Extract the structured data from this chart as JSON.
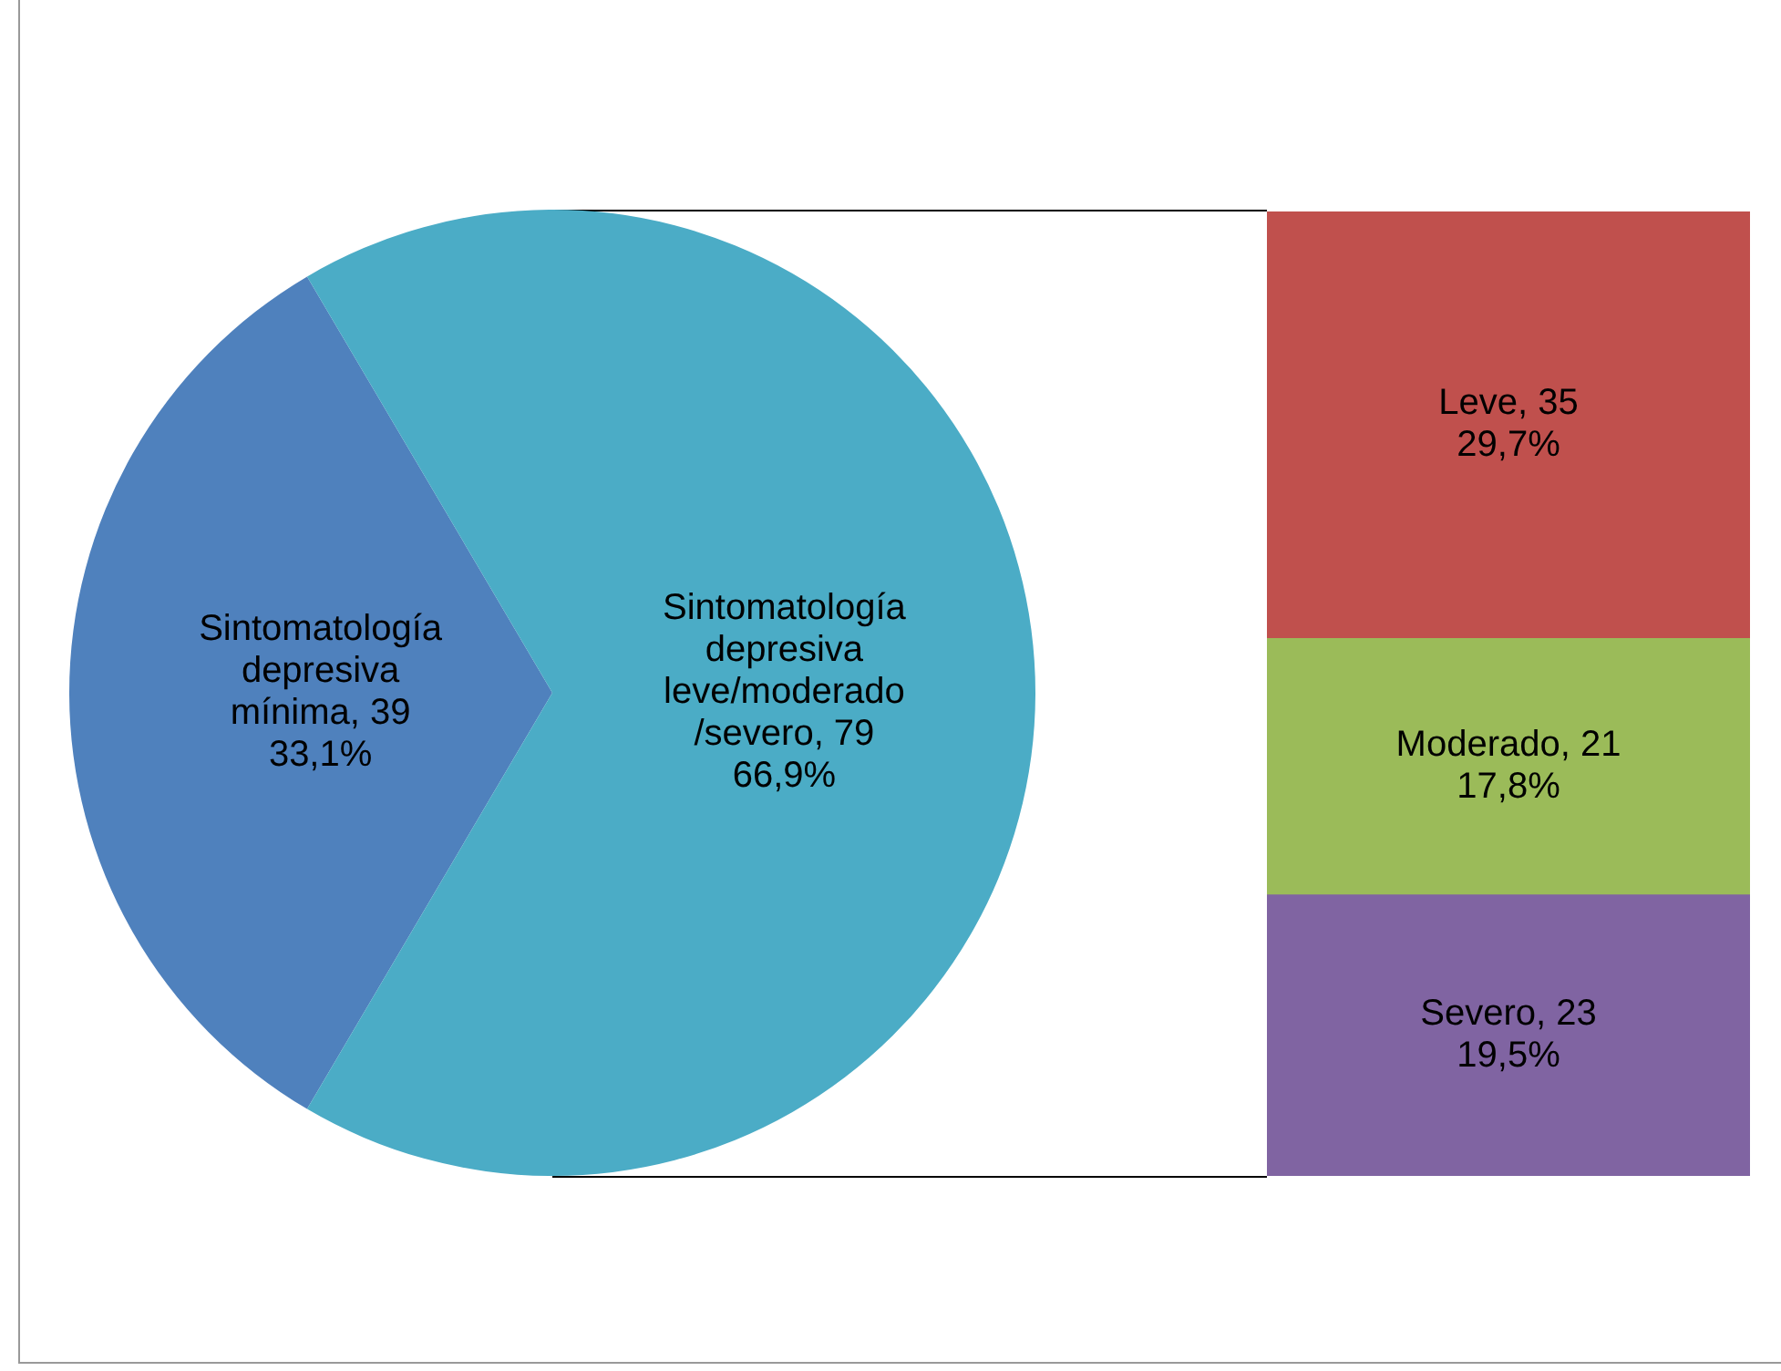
{
  "chart_data": [
    {
      "type": "pie",
      "categories": [
        "Sintomatología depresiva mínima, 39\n33,1%",
        "Sintomatología depresiva leve/moderado /severo, 79\n66,9%"
      ],
      "values": [
        39,
        79
      ],
      "colors": [
        "#4f81bd",
        "#4bacc6"
      ]
    },
    {
      "type": "bar",
      "stacked": true,
      "categories": [
        null
      ],
      "series": [
        {
          "color": "#8064a2",
          "values": [
            23
          ],
          "value_labels": [
            "Severo, 23\n19,5%"
          ]
        },
        {
          "color": "#9bbb59",
          "values": [
            21
          ],
          "value_labels": [
            "Moderado, 21\n17,8%"
          ]
        },
        {
          "color": "#c0504d",
          "values": [
            35
          ],
          "value_labels": [
            "Leve, 35\n29,7%"
          ]
        }
      ]
    }
  ]
}
